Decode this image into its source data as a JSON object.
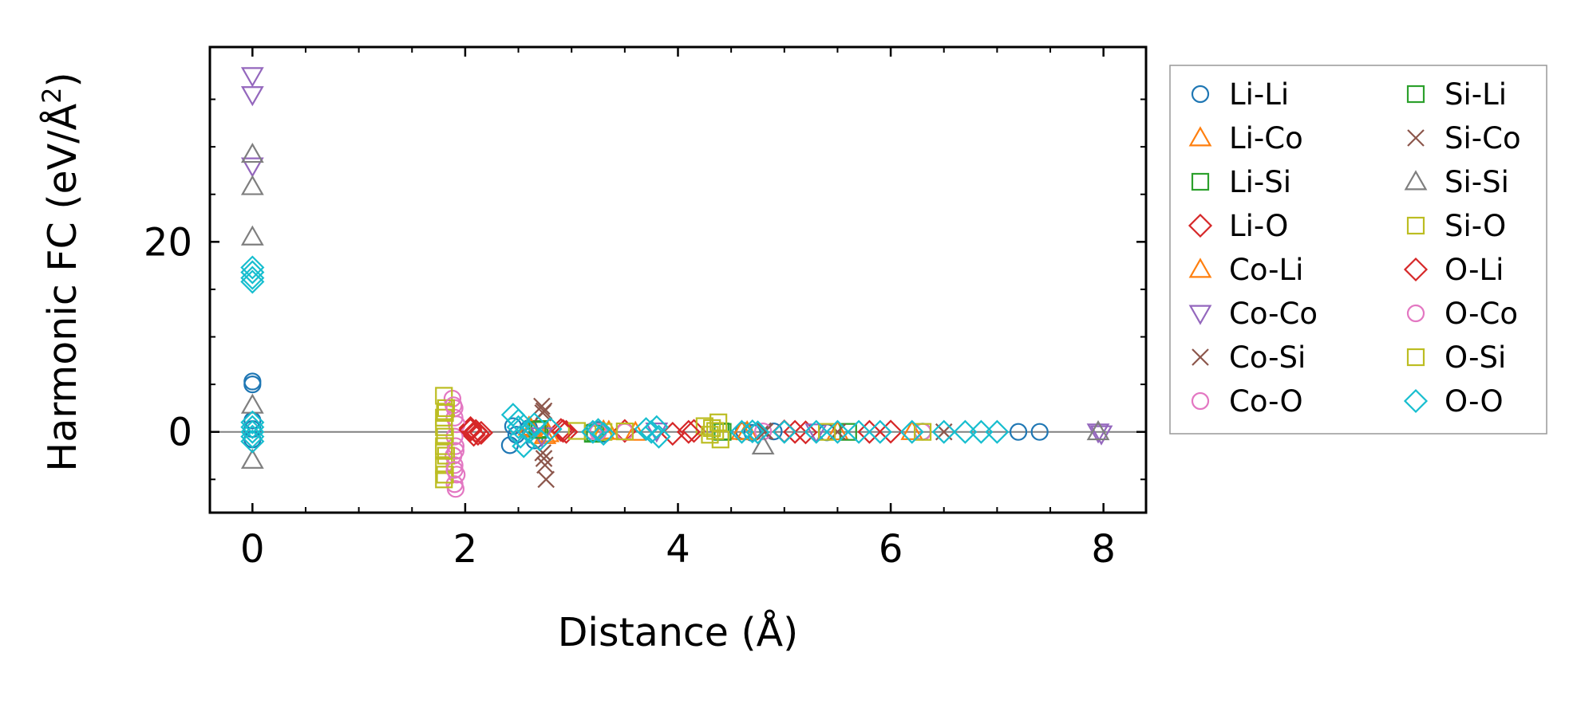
{
  "chart_data": {
    "type": "scatter",
    "xlabel": "Distance (Å)",
    "ylabel": "Harmonic FC (eV/Å²)",
    "ylabel_main": "Harmonic FC (eV/Å",
    "ylabel_sup": "2",
    "ylabel_close": ")",
    "xlim": [
      -0.4,
      8.4
    ],
    "ylim": [
      -8.5,
      40.5
    ],
    "xticks": [
      0,
      2,
      4,
      6,
      8
    ],
    "xtick_labels": [
      "0",
      "2",
      "4",
      "6",
      "8"
    ],
    "yticks": [
      0,
      20
    ],
    "ytick_labels": [
      "0",
      "20"
    ],
    "ytick_minor": [
      -5,
      5,
      10,
      15,
      25,
      30,
      35
    ],
    "xtick_minor": [
      0.5,
      1,
      1.5,
      2.5,
      3,
      3.5,
      4.5,
      5,
      5.5,
      6.5,
      7,
      7.5
    ],
    "zero_line": true,
    "grid": false,
    "legend_position": "outside-right",
    "legend_columns": 2,
    "series": [
      {
        "name": "Li-Li",
        "marker": "circle",
        "color": "#1f77b4",
        "points": [
          [
            0,
            5.3
          ],
          [
            0,
            5.0
          ],
          [
            0,
            1.2
          ],
          [
            0,
            0.3
          ],
          [
            0,
            -0.8
          ],
          [
            2.42,
            -1.4
          ],
          [
            2.45,
            0.6
          ],
          [
            2.48,
            -0.3
          ],
          [
            2.6,
            0.4
          ],
          [
            2.65,
            -0.9
          ],
          [
            3.25,
            0.2
          ],
          [
            3.3,
            -0.2
          ],
          [
            4.62,
            0.1
          ],
          [
            4.7,
            -0.1
          ],
          [
            4.9,
            0.05
          ],
          [
            5.4,
            -0.05
          ],
          [
            6.3,
            0.03
          ],
          [
            7.2,
            0.0
          ],
          [
            7.4,
            0.0
          ]
        ]
      },
      {
        "name": "Li-Co",
        "marker": "triangle-up",
        "color": "#ff7f0e",
        "points": [
          [
            2.6,
            0.5
          ],
          [
            2.75,
            -0.4
          ],
          [
            3.3,
            0.1
          ],
          [
            3.6,
            -0.05
          ],
          [
            4.6,
            0.05
          ],
          [
            5.5,
            0.0
          ],
          [
            6.2,
            0.02
          ]
        ]
      },
      {
        "name": "Li-Si",
        "marker": "square",
        "color": "#2ca02c",
        "points": [
          [
            2.7,
            0.3
          ],
          [
            3.2,
            -0.2
          ],
          [
            4.4,
            0.05
          ],
          [
            5.6,
            0.0
          ]
        ]
      },
      {
        "name": "Li-O",
        "marker": "diamond",
        "color": "#d62728",
        "points": [
          [
            2.05,
            0.4
          ],
          [
            2.08,
            -0.3
          ],
          [
            2.1,
            0.1
          ],
          [
            2.15,
            -0.1
          ],
          [
            2.9,
            0.2
          ],
          [
            2.95,
            0.0
          ],
          [
            3.5,
            0.1
          ],
          [
            3.95,
            -0.2
          ],
          [
            4.15,
            0.1
          ],
          [
            5.0,
            0.05
          ],
          [
            5.2,
            -0.05
          ],
          [
            5.8,
            0.0
          ],
          [
            6.0,
            0.02
          ]
        ]
      },
      {
        "name": "Co-Li",
        "marker": "triangle-up",
        "color": "#ff7f0e",
        "points": [
          [
            2.62,
            0.3
          ],
          [
            2.78,
            -0.2
          ],
          [
            3.35,
            0.05
          ],
          [
            4.65,
            0.0
          ]
        ]
      },
      {
        "name": "Co-Co",
        "marker": "triangle-down",
        "color": "#9467bd",
        "points": [
          [
            0,
            37.5
          ],
          [
            0,
            35.5
          ],
          [
            0,
            28.0
          ],
          [
            2.72,
            -0.4
          ],
          [
            3.8,
            0.1
          ],
          [
            5.3,
            0.0
          ],
          [
            7.95,
            0.0
          ],
          [
            7.98,
            -0.2
          ]
        ]
      },
      {
        "name": "Co-Si",
        "marker": "x",
        "color": "#8c564b",
        "points": [
          [
            2.72,
            2.7
          ],
          [
            2.74,
            2.2
          ],
          [
            2.73,
            -2.2
          ],
          [
            2.75,
            -3.5
          ],
          [
            2.76,
            -5.0
          ],
          [
            4.8,
            0.1
          ],
          [
            5.5,
            0.0
          ],
          [
            6.5,
            0.0
          ]
        ]
      },
      {
        "name": "Co-O",
        "marker": "circle",
        "color": "#e377c2",
        "points": [
          [
            1.88,
            3.5
          ],
          [
            1.9,
            2.5
          ],
          [
            1.9,
            1.5
          ],
          [
            1.92,
            0.8
          ],
          [
            1.9,
            -0.5
          ],
          [
            1.91,
            -1.5
          ],
          [
            1.89,
            -2.5
          ],
          [
            1.9,
            -3.5
          ],
          [
            1.92,
            -4.5
          ],
          [
            1.9,
            -5.5
          ],
          [
            1.91,
            -6.0
          ],
          [
            3.2,
            0.1
          ],
          [
            3.5,
            0.0
          ],
          [
            4.8,
            0.05
          ],
          [
            6.3,
            0.0
          ]
        ]
      },
      {
        "name": "Si-Li",
        "marker": "square",
        "color": "#2ca02c",
        "points": [
          [
            2.68,
            0.2
          ],
          [
            3.22,
            -0.1
          ],
          [
            4.42,
            0.0
          ]
        ]
      },
      {
        "name": "Si-Co",
        "marker": "x",
        "color": "#8c564b",
        "points": [
          [
            2.73,
            2.0
          ],
          [
            2.74,
            -2.8
          ],
          [
            4.82,
            0.05
          ]
        ]
      },
      {
        "name": "Si-Si",
        "marker": "triangle-up",
        "color": "#7f7f7f",
        "points": [
          [
            0,
            29.2
          ],
          [
            0,
            25.8
          ],
          [
            0,
            20.5
          ],
          [
            0,
            2.8
          ],
          [
            0,
            -3.0
          ],
          [
            4.8,
            -1.5
          ],
          [
            7.95,
            0.0
          ]
        ]
      },
      {
        "name": "Si-O",
        "marker": "square",
        "color": "#bcbd22",
        "points": [
          [
            1.8,
            3.8
          ],
          [
            1.82,
            2.5
          ],
          [
            1.8,
            1.5
          ],
          [
            1.8,
            0.5
          ],
          [
            1.81,
            -0.5
          ],
          [
            1.8,
            -1.5
          ],
          [
            1.82,
            -2.5
          ],
          [
            1.8,
            -3.5
          ],
          [
            1.81,
            -4.5
          ],
          [
            1.8,
            -5.0
          ],
          [
            3.05,
            0.1
          ],
          [
            3.3,
            0.0
          ],
          [
            3.5,
            0.05
          ],
          [
            4.25,
            0.6
          ],
          [
            4.3,
            -0.3
          ],
          [
            4.35,
            0.1
          ],
          [
            4.38,
            1.0
          ],
          [
            4.4,
            -0.8
          ],
          [
            5.4,
            0.0
          ],
          [
            6.3,
            0.0
          ]
        ]
      },
      {
        "name": "O-Li",
        "marker": "diamond",
        "color": "#d62728",
        "points": [
          [
            2.05,
            0.2
          ],
          [
            2.12,
            -0.2
          ],
          [
            2.92,
            0.1
          ],
          [
            4.1,
            0.0
          ],
          [
            5.1,
            0.0
          ]
        ]
      },
      {
        "name": "O-Co",
        "marker": "circle",
        "color": "#e377c2",
        "points": [
          [
            1.89,
            2.8
          ],
          [
            1.91,
            -2.0
          ],
          [
            1.9,
            -4.0
          ],
          [
            3.25,
            0.0
          ]
        ]
      },
      {
        "name": "O-Si",
        "marker": "square",
        "color": "#bcbd22",
        "points": [
          [
            1.81,
            2.0
          ],
          [
            1.8,
            -2.0
          ],
          [
            4.32,
            0.4
          ]
        ]
      },
      {
        "name": "O-O",
        "marker": "diamond",
        "color": "#17becf",
        "points": [
          [
            0,
            17.3
          ],
          [
            0,
            16.8
          ],
          [
            0,
            16.2
          ],
          [
            0,
            15.8
          ],
          [
            0,
            1.0
          ],
          [
            0,
            0.5
          ],
          [
            0,
            0.0
          ],
          [
            0,
            -0.5
          ],
          [
            0,
            -1.0
          ],
          [
            2.45,
            1.8
          ],
          [
            2.5,
            1.2
          ],
          [
            2.5,
            0.5
          ],
          [
            2.52,
            -0.5
          ],
          [
            2.55,
            -1.5
          ],
          [
            2.6,
            0.0
          ],
          [
            2.65,
            0.8
          ],
          [
            2.7,
            -0.8
          ],
          [
            2.8,
            0.3
          ],
          [
            3.2,
            0.0
          ],
          [
            3.25,
            0.2
          ],
          [
            3.3,
            -0.2
          ],
          [
            3.7,
            0.3
          ],
          [
            3.75,
            0.0
          ],
          [
            3.8,
            0.5
          ],
          [
            3.82,
            -0.5
          ],
          [
            4.6,
            0.0
          ],
          [
            4.7,
            0.05
          ],
          [
            4.75,
            -0.05
          ],
          [
            5.0,
            0.0
          ],
          [
            5.3,
            0.0
          ],
          [
            5.5,
            0.0
          ],
          [
            5.7,
            0.0
          ],
          [
            5.9,
            0.0
          ],
          [
            6.2,
            0.0
          ],
          [
            6.5,
            0.0
          ],
          [
            6.7,
            0.0
          ],
          [
            6.85,
            0.0
          ],
          [
            7.0,
            0.0
          ]
        ]
      }
    ]
  }
}
